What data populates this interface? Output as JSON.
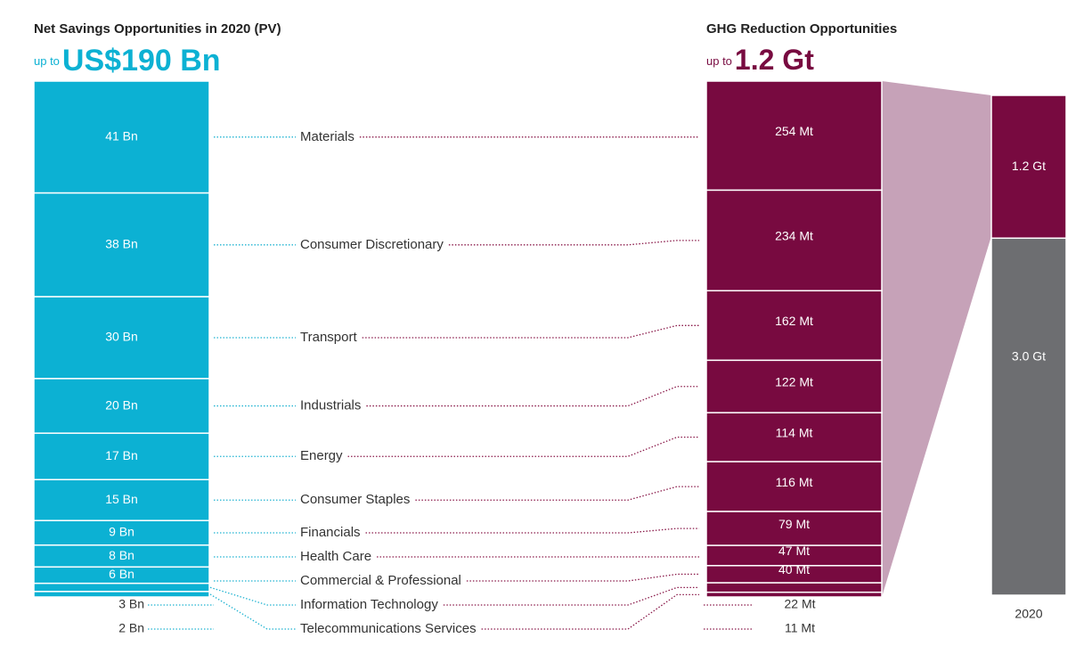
{
  "chart_data": {
    "type": "stacked_bar",
    "left_title": "Net Savings Opportunities in 2020 (PV)",
    "left_headline_prefix": "up to",
    "left_headline": "US$190 Bn",
    "right_title": "GHG Reduction Opportunities",
    "right_headline_prefix": "up to",
    "right_headline": "1.2 Gt",
    "categories": [
      "Materials",
      "Consumer Discretionary",
      "Transport",
      "Industrials",
      "Energy",
      "Consumer Staples",
      "Financials",
      "Health Care",
      "Commercial & Professional",
      "Information Technology",
      "Telecommunications Services"
    ],
    "series": [
      {
        "name": "Net Savings",
        "color": "#0cb1d3",
        "values": [
          41,
          38,
          30,
          20,
          17,
          15,
          9,
          8,
          6,
          3,
          2
        ],
        "value_labels": [
          "41 Bn",
          "38 Bn",
          "30 Bn",
          "20 Bn",
          "17 Bn",
          "15 Bn",
          "9 Bn",
          "8 Bn",
          "6 Bn",
          "3 Bn",
          "2 Bn"
        ]
      },
      {
        "name": "GHG Reduction",
        "color": "#780a40",
        "values": [
          254,
          234,
          162,
          122,
          114,
          116,
          79,
          47,
          40,
          22,
          11
        ],
        "value_labels": [
          "254 Mt",
          "234 Mt",
          "162 Mt",
          "122 Mt",
          "114 Mt",
          "116 Mt",
          "79 Mt",
          "47 Mt",
          "40 Mt",
          "22 Mt",
          "11 Mt"
        ]
      }
    ],
    "total_bar": {
      "category": "2020",
      "values": [
        1.2,
        3.0
      ],
      "value_labels": [
        "1.2 Gt",
        "3.0 Gt"
      ],
      "colors": [
        "#780a40",
        "#6d6e71"
      ]
    }
  }
}
